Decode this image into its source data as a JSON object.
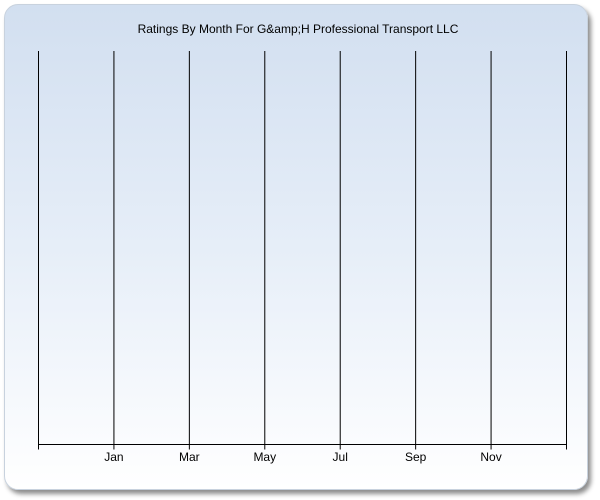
{
  "chart_data": {
    "type": "line",
    "title": "Ratings By Month For G&amp;H Professional Transport LLC",
    "xlabel": "",
    "ylabel": "",
    "tick_labels": [
      "Jan",
      "Mar",
      "May",
      "Jul",
      "Sep",
      "Nov"
    ],
    "series": [],
    "grid": true,
    "colors": {
      "grid": "#000000",
      "background_top": "#d2dff0",
      "background_bottom": "#ffffff"
    }
  }
}
